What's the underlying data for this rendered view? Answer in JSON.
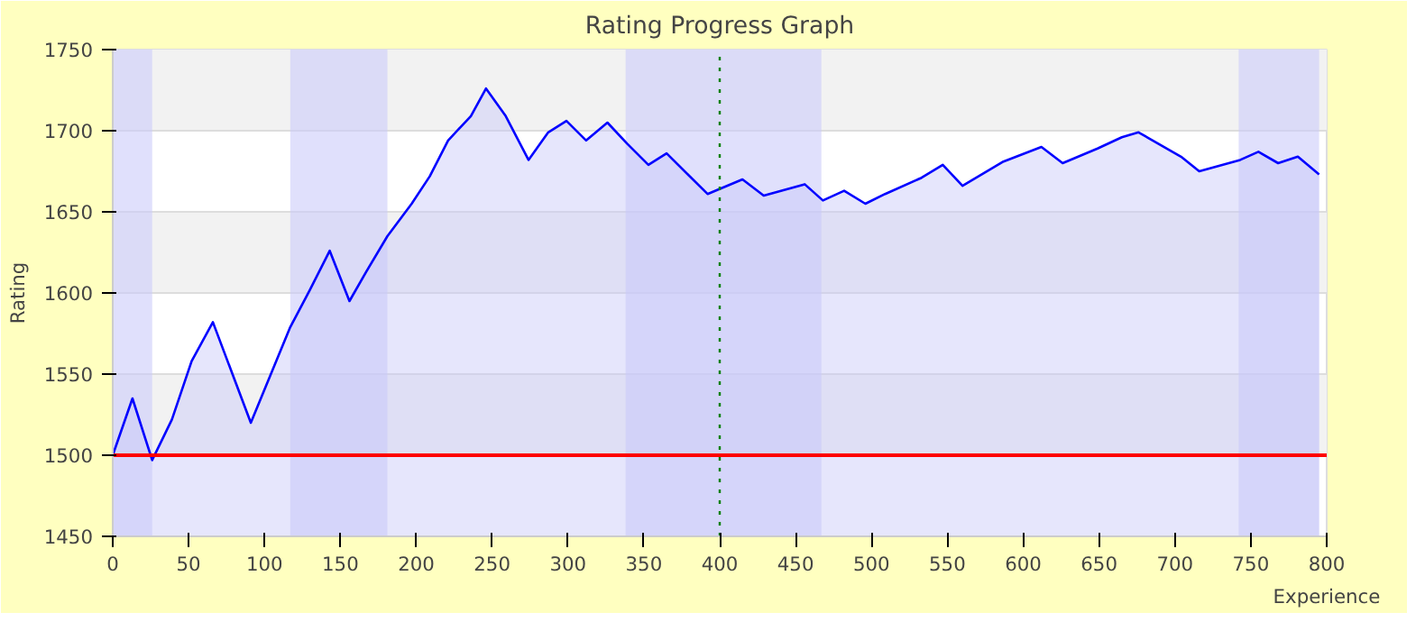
{
  "chart_data": {
    "type": "area",
    "title": "Rating Progress Graph",
    "xlabel": "Experience",
    "ylabel": "Rating",
    "xlim": [
      0,
      800
    ],
    "ylim": [
      1450,
      1750
    ],
    "xticks": [
      0,
      50,
      100,
      150,
      200,
      250,
      300,
      350,
      400,
      450,
      500,
      550,
      600,
      650,
      700,
      750,
      800
    ],
    "yticks": [
      1450,
      1500,
      1550,
      1600,
      1650,
      1700,
      1750
    ],
    "grid": "y",
    "marker": "none",
    "line_style": "solid",
    "series": [
      {
        "color": "#0000ff",
        "x": [
          0,
          13,
          26,
          39,
          52,
          66,
          91,
          117,
          130,
          143,
          156,
          167,
          181,
          197,
          209,
          221,
          236,
          246,
          259,
          274,
          287,
          299,
          312,
          326,
          339,
          353,
          365,
          392,
          415,
          429,
          456,
          468,
          482,
          496,
          509,
          533,
          547,
          560,
          587,
          612,
          626,
          649,
          665,
          676,
          704,
          716,
          743,
          755,
          768,
          781,
          795
        ],
        "values": [
          1500,
          1535,
          1497,
          1522,
          1558,
          1582,
          1520,
          1579,
          1602,
          1626,
          1595,
          1613,
          1635,
          1655,
          1672,
          1694,
          1709,
          1726,
          1709,
          1682,
          1699,
          1706,
          1694,
          1705,
          1692,
          1679,
          1686,
          1661,
          1670,
          1660,
          1667,
          1657,
          1663,
          1655,
          1661,
          1671,
          1679,
          1666,
          1681,
          1690,
          1680,
          1689,
          1696,
          1699,
          1684,
          1675,
          1682,
          1687,
          1680,
          1684,
          1673
        ]
      }
    ],
    "ref_lines": [
      {
        "axis": "y",
        "value": 1500,
        "color": "#ff0000",
        "line_style": "solid"
      },
      {
        "axis": "x",
        "value": 400,
        "color": "#008000",
        "line_style": "dotted"
      }
    ],
    "bands": [
      {
        "axis": "x",
        "from": 0,
        "to": 26,
        "color": "#ccccfa"
      },
      {
        "axis": "x",
        "from": 117,
        "to": 181,
        "color": "#ccccfa"
      },
      {
        "axis": "x",
        "from": 338,
        "to": 467,
        "color": "#ccccfa"
      },
      {
        "axis": "x",
        "from": 742,
        "to": 795,
        "color": "#ccccfa"
      }
    ]
  }
}
